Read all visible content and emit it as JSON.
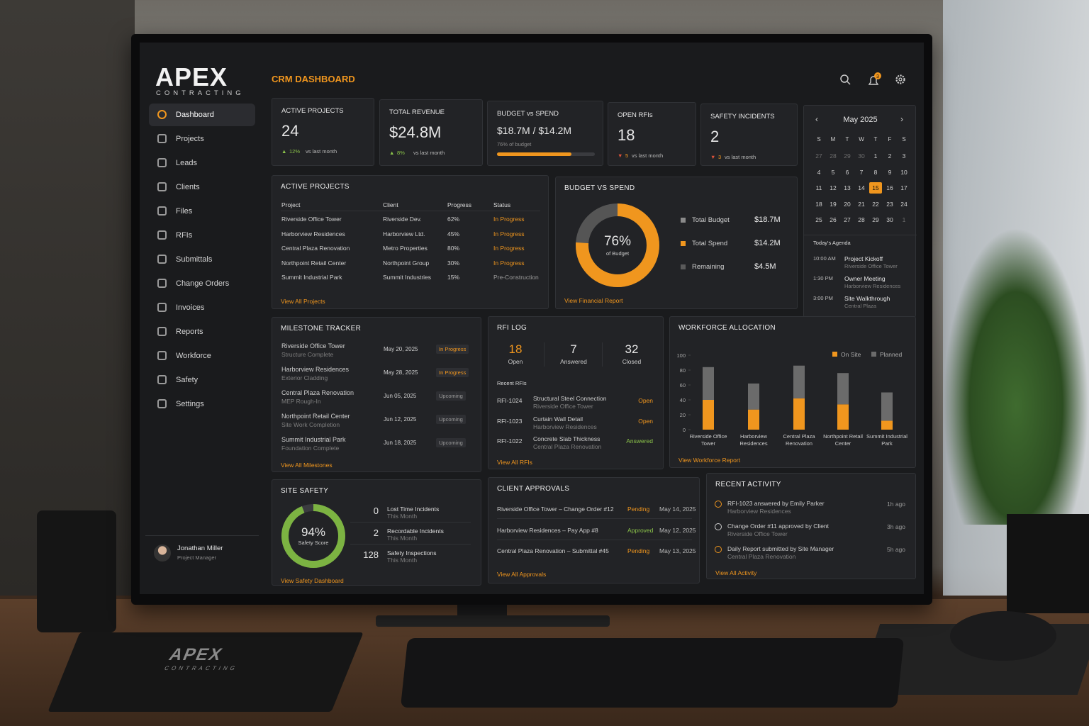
{
  "header": {
    "logo": "APEX",
    "logo_sub": "CONTRACTING",
    "title": "CRM DASHBOARD",
    "notifications": "3"
  },
  "nav": [
    "Dashboard",
    "Projects",
    "Leads",
    "Clients",
    "Files",
    "RFIs",
    "Submittals",
    "Change Orders",
    "Invoices",
    "Reports",
    "Workforce",
    "Safety",
    "Settings"
  ],
  "user": {
    "name": "Jonathan Miller",
    "role": "Project Manager"
  },
  "kpis": [
    {
      "label": "ACTIVE PROJECTS",
      "value": "24",
      "change": "12%",
      "note": "vs last month",
      "trend": "up"
    },
    {
      "label": "TOTAL REVENUE",
      "value": "$24.8M",
      "change": "8%",
      "note": "vs last month",
      "trend": "up"
    },
    {
      "label": "BUDGET vs SPEND",
      "value": "$18.7M / $14.2M",
      "progress": {
        "value": 76,
        "label": "76% of budget"
      }
    },
    {
      "label": "OPEN RFIs",
      "value": "18",
      "change": "5",
      "note": "vs last month",
      "trend": "down"
    },
    {
      "label": "SAFETY INCIDENTS",
      "value": "2",
      "change": "3",
      "note": "vs last month",
      "trend": "down"
    }
  ],
  "active_projects": {
    "title": "ACTIVE PROJECTS",
    "columns": [
      "Project",
      "Client",
      "Progress",
      "Status"
    ],
    "rows": [
      [
        "Riverside Office Tower",
        "Riverside Dev.",
        "62%",
        "In Progress"
      ],
      [
        "Harborview Residences",
        "Harborview Ltd.",
        "45%",
        "In Progress"
      ],
      [
        "Central Plaza Renovation",
        "Metro Properties",
        "80%",
        "In Progress"
      ],
      [
        "Northpoint Retail Center",
        "Northpoint Group",
        "30%",
        "In Progress"
      ],
      [
        "Summit Industrial Park",
        "Summit Industries",
        "15%",
        "Pre-Construction"
      ]
    ],
    "status_colors": [
      "#f0961e",
      "#f0961e",
      "#f0961e",
      "#f0961e",
      "#9a9a9a"
    ],
    "link": "View All Projects"
  },
  "budget": {
    "title": "BUDGET VS SPEND",
    "percent": {
      "value": 76,
      "label": "76%"
    },
    "caption": "of Budget",
    "items": [
      {
        "label": "Total Budget",
        "value": "$18.7M",
        "color": "#8a8a8a"
      },
      {
        "label": "Total Spend",
        "value": "$14.2M",
        "color": "#f0961e"
      },
      {
        "label": "Remaining",
        "value": "$4.5M",
        "color": "#5a5a5a"
      }
    ],
    "link": "View Financial Report"
  },
  "calendar": {
    "month": "May 2025",
    "weekdays": [
      "S",
      "M",
      "T",
      "W",
      "T",
      "F",
      "S"
    ],
    "days": [
      "27",
      "28",
      "29",
      "30",
      "1",
      "2",
      "3",
      "4",
      "5",
      "6",
      "7",
      "8",
      "9",
      "10",
      "11",
      "12",
      "13",
      "14",
      "15",
      "16",
      "17",
      "18",
      "19",
      "20",
      "21",
      "22",
      "23",
      "24",
      "25",
      "26",
      "27",
      "28",
      "29",
      "30",
      "1"
    ],
    "agenda_title": "Today's Agenda",
    "agenda": [
      {
        "time": "10:00 AM",
        "title": "Project Kickoff",
        "place": "Riverside Office Tower"
      },
      {
        "time": "1:30 PM",
        "title": "Owner Meeting",
        "place": "Harborview Residences"
      },
      {
        "time": "3:00 PM",
        "title": "Site Walkthrough",
        "place": "Central Plaza"
      }
    ]
  },
  "milestones": {
    "title": "MILESTONE TRACKER",
    "items": [
      {
        "name": "Riverside Office Tower",
        "detail": "Structure Complete",
        "date": "May 20, 2025",
        "status": "In Progress",
        "color": "#f0961e"
      },
      {
        "name": "Harborview Residences",
        "detail": "Exterior Cladding",
        "date": "May 28, 2025",
        "status": "In Progress",
        "color": "#f0961e"
      },
      {
        "name": "Central Plaza Renovation",
        "detail": "MEP Rough-In",
        "date": "Jun 05, 2025",
        "status": "Upcoming",
        "color": "#9a9a9a"
      },
      {
        "name": "Northpoint Retail Center",
        "detail": "Site Work Completion",
        "date": "Jun 12, 2025",
        "status": "Upcoming",
        "color": "#9a9a9a"
      },
      {
        "name": "Summit Industrial Park",
        "detail": "Foundation Complete",
        "date": "Jun 18, 2025",
        "status": "Upcoming",
        "color": "#9a9a9a"
      }
    ],
    "link": "View All Milestones"
  },
  "rfi": {
    "title": "RFI LOG",
    "stats": [
      {
        "value": "18",
        "label": "Open",
        "color": "#f0961e"
      },
      {
        "value": "7",
        "label": "Answered",
        "color": "#e6e6e6"
      },
      {
        "value": "32",
        "label": "Closed",
        "color": "#e6e6e6"
      }
    ],
    "recent_title": "Recent RFIs",
    "items": [
      {
        "id": "RFI-1024",
        "title": "Structural Steel Connection",
        "project": "Riverside Office Tower",
        "status": "Open",
        "color": "#f0961e"
      },
      {
        "id": "RFI-1023",
        "title": "Curtain Wall Detail",
        "project": "Harborview Residences",
        "status": "Open",
        "color": "#f0961e"
      },
      {
        "id": "RFI-1022",
        "title": "Concrete Slab Thickness",
        "project": "Central Plaza Renovation",
        "status": "Answered",
        "color": "#8bc34a"
      }
    ],
    "link": "View All RFIs"
  },
  "workforce": {
    "title": "WORKFORCE ALLOCATION",
    "type": "bar",
    "stacked": true,
    "categories": [
      "Riverside Office Tower",
      "Harborview Residences",
      "Central Plaza Renovation",
      "Northpoint Retail Center",
      "Summit Industrial Park"
    ],
    "series": [
      {
        "name": "On Site",
        "color": "#f0961e",
        "values": [
          40,
          27,
          42,
          34,
          12
        ]
      },
      {
        "name": "Planned",
        "color": "#6b6b6b",
        "values": [
          44,
          35,
          44,
          42,
          38
        ]
      }
    ],
    "ylim": [
      0,
      100
    ],
    "yticks": [
      0,
      20,
      40,
      60,
      80,
      100
    ],
    "link": "View Workforce Report"
  },
  "safety": {
    "title": "SITE SAFETY",
    "score": {
      "value": 94,
      "label": "94%"
    },
    "caption": "Safety Score",
    "items": [
      {
        "value": "0",
        "label": "Lost Time Incidents",
        "period": "This Month"
      },
      {
        "value": "2",
        "label": "Recordable Incidents",
        "period": "This Month"
      },
      {
        "value": "128",
        "label": "Safety Inspections",
        "period": "This Month"
      }
    ],
    "link": "View Safety Dashboard"
  },
  "approvals": {
    "title": "CLIENT APPROVALS",
    "items": [
      {
        "item": "Riverside Office Tower – Change Order #12",
        "status": "Pending",
        "date": "May 14, 2025",
        "color": "#f0961e"
      },
      {
        "item": "Harborview Residences – Pay App #8",
        "status": "Approved",
        "date": "May 12, 2025",
        "color": "#8bc34a"
      },
      {
        "item": "Central Plaza Renovation – Submittal #45",
        "status": "Pending",
        "date": "May 13, 2025",
        "color": "#f0961e"
      }
    ],
    "link": "View All Approvals"
  },
  "activity": {
    "title": "RECENT ACTIVITY",
    "items": [
      {
        "text": "RFI-1023 answered by Emily Parker",
        "project": "Harborview Residences",
        "time": "1h ago",
        "color": "#f0961e"
      },
      {
        "text": "Change Order #11 approved by Client",
        "project": "Riverside Office Tower",
        "time": "3h ago",
        "color": "#d0d0d0"
      },
      {
        "text": "Daily Report submitted by Site Manager",
        "project": "Central Plaza Renovation",
        "time": "5h ago",
        "color": "#f0961e"
      }
    ],
    "link": "View All Activity"
  },
  "notebook": {
    "brand": "APEX",
    "sub": "CONTRACTING"
  }
}
